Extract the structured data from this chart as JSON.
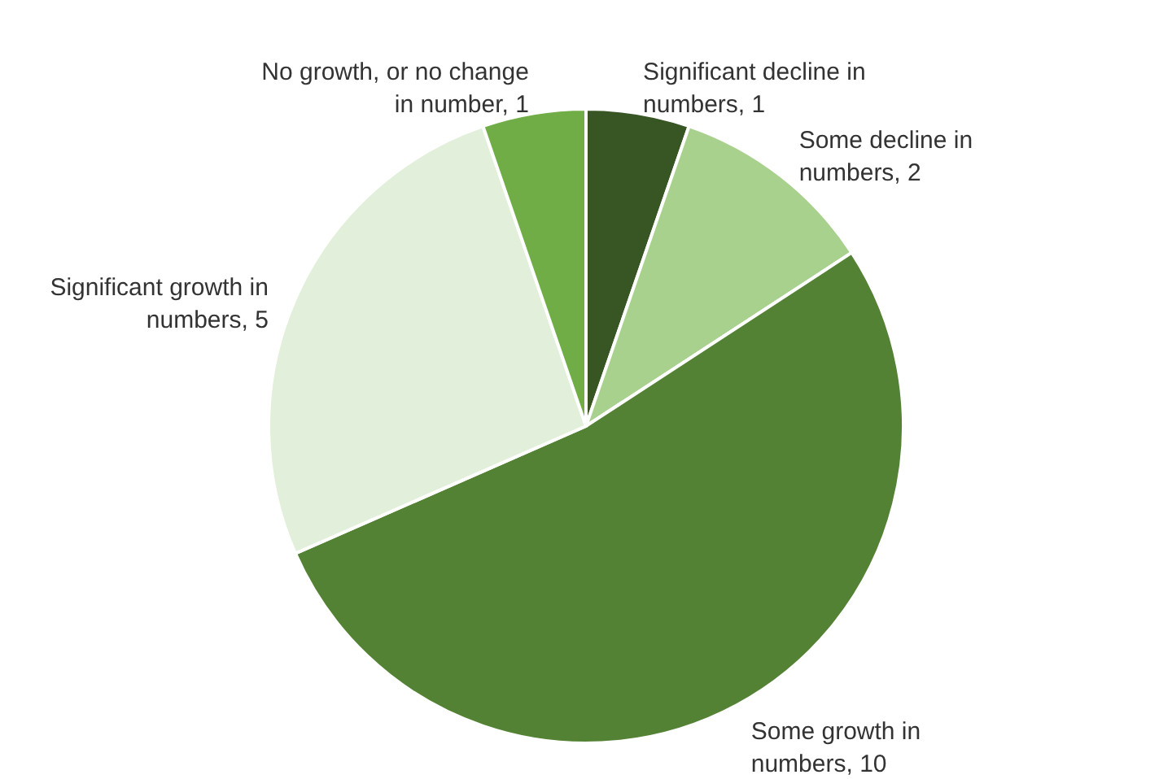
{
  "chart_data": {
    "type": "pie",
    "categories": [
      "Significant decline in numbers, 1",
      "Some decline in numbers, 2",
      "Some growth in numbers, 10",
      "Significant growth in numbers, 5",
      "No growth, or no change in number, 1"
    ],
    "values": [
      1,
      2,
      10,
      5,
      1
    ],
    "colors": [
      "#375623",
      "#a9d18e",
      "#548235",
      "#e2efda",
      "#70ad47"
    ]
  }
}
